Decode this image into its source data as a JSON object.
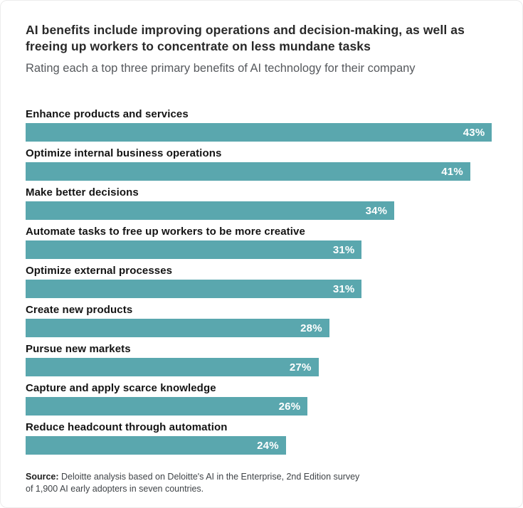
{
  "header": {
    "title": "AI benefits include improving operations and decision-making, as well as freeing up workers to concentrate on less mundane tasks",
    "subtitle": "Rating each a top three primary benefits of AI technology for their company"
  },
  "chart_data": {
    "type": "bar",
    "orientation": "horizontal",
    "title": "AI benefits include improving operations and decision-making, as well as freeing up workers to concentrate on less mundane tasks",
    "subtitle": "Rating each a top three primary benefits of AI technology for their company",
    "categories": [
      "Enhance products and services",
      "Optimize internal business operations",
      "Make better decisions",
      "Automate tasks to free up workers to be more creative",
      "Optimize external processes",
      "Create new products",
      "Pursue new markets",
      "Capture and apply scarce knowledge",
      "Reduce headcount through automation"
    ],
    "values": [
      43,
      41,
      34,
      31,
      31,
      28,
      27,
      26,
      24
    ],
    "value_labels": [
      "43%",
      "41%",
      "34%",
      "31%",
      "31%",
      "28%",
      "27%",
      "26%",
      "24%"
    ],
    "xlabel": "",
    "ylabel": "",
    "xlim": [
      0,
      43.5
    ],
    "grid": false,
    "legend": false,
    "value_labels_position": "inside-end",
    "bar_color": "#5aa7ae",
    "value_label_color": "#ffffff"
  },
  "footer": {
    "source_label": "Source:",
    "source_text": " Deloitte analysis based on Deloitte's AI in the Enterprise, 2nd Edition survey of 1,900 AI early adopters in seven countries."
  }
}
